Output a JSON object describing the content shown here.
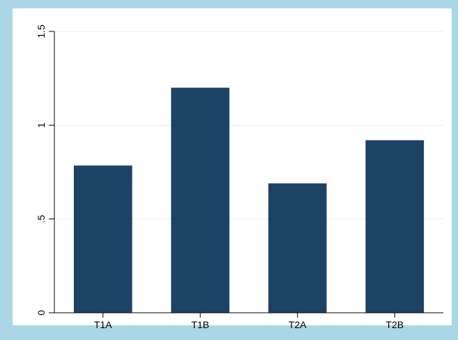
{
  "chart_data": {
    "type": "bar",
    "title": "",
    "xlabel": "",
    "ylabel": "",
    "categories": [
      "T1A",
      "T1B",
      "T2A",
      "T2B"
    ],
    "values": [
      0.785,
      1.2,
      0.69,
      0.92
    ],
    "ylim": [
      0,
      1.5
    ],
    "yticks": [
      0,
      0.5,
      1,
      1.5
    ],
    "ytick_labels": [
      "0",
      ".5",
      "1",
      "1.5"
    ],
    "grid": true,
    "legend": "none",
    "bar_color": "#1c4266",
    "background_color": "#aad6e5",
    "plot_background_color": "#ffffff"
  }
}
